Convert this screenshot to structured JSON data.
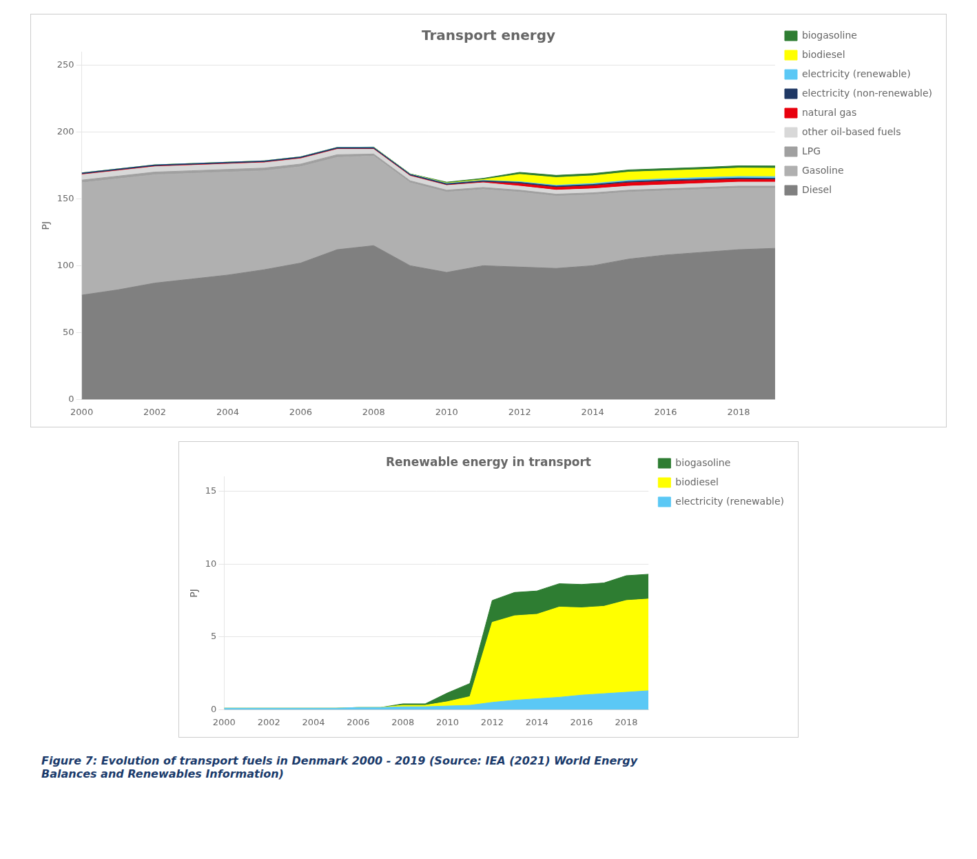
{
  "chart_data": [
    {
      "type": "area",
      "stacked": true,
      "title": "Transport energy",
      "y_label": "PJ",
      "x": [
        2000,
        2001,
        2002,
        2003,
        2004,
        2005,
        2006,
        2007,
        2008,
        2009,
        2010,
        2011,
        2012,
        2013,
        2014,
        2015,
        2016,
        2017,
        2018,
        2019
      ],
      "xlim": [
        2000,
        2019
      ],
      "xticks": [
        2000,
        2002,
        2004,
        2006,
        2008,
        2010,
        2012,
        2014,
        2016,
        2018
      ],
      "ylim": [
        0,
        260
      ],
      "yticks": [
        0,
        50,
        100,
        150,
        200,
        250
      ],
      "grid": "y",
      "legend": "right",
      "series": [
        {
          "name": "Diesel",
          "color": "#808080",
          "values": [
            78,
            82,
            87,
            90,
            93,
            97,
            102,
            112,
            115,
            100,
            95,
            100,
            99,
            98,
            100,
            105,
            108,
            110,
            112,
            113
          ]
        },
        {
          "name": "Gasoline",
          "color": "#b0b0b0",
          "values": [
            84,
            83,
            81,
            79,
            77,
            74,
            72,
            69,
            67,
            62,
            60,
            57,
            56,
            54,
            53,
            50,
            48,
            47,
            46,
            45
          ]
        },
        {
          "name": "LPG",
          "color": "#a0a0a0",
          "values": [
            2.0,
            2.0,
            2.0,
            2.0,
            2.0,
            2.0,
            2.0,
            2.0,
            1.5,
            1.5,
            1.5,
            1.5,
            1.5,
            1.5,
            1.5,
            1.5,
            1.5,
            1.5,
            1.5,
            1.5
          ]
        },
        {
          "name": "other oil-based fuels",
          "color": "#d8d8d8",
          "values": [
            4.0,
            4.0,
            4.0,
            4.0,
            4.0,
            4.0,
            4.0,
            4.0,
            3.5,
            3.5,
            3.5,
            3.5,
            3.0,
            3.0,
            3.0,
            3.0,
            3.0,
            3.0,
            3.0,
            3.0
          ]
        },
        {
          "name": "natural gas",
          "color": "#e8000d",
          "values": [
            0.3,
            0.3,
            0.3,
            0.3,
            0.3,
            0.3,
            0.3,
            0.3,
            0.3,
            0.3,
            0.3,
            0.5,
            1.8,
            2.0,
            2.2,
            2.5,
            2.5,
            2.3,
            2.0,
            1.8
          ]
        },
        {
          "name": "electricity (non-renewable)",
          "color": "#1f3864",
          "values": [
            1.0,
            1.0,
            1.0,
            1.0,
            1.0,
            1.0,
            1.0,
            1.0,
            1.0,
            1.0,
            1.0,
            1.0,
            1.0,
            1.0,
            1.0,
            1.0,
            1.0,
            1.0,
            1.0,
            1.0
          ]
        },
        {
          "name": "electricity (renewable)",
          "color": "#5bc8f5",
          "values": [
            0.1,
            0.1,
            0.1,
            0.1,
            0.1,
            0.1,
            0.15,
            0.15,
            0.2,
            0.2,
            0.25,
            0.3,
            0.5,
            0.65,
            0.75,
            0.85,
            1.0,
            1.1,
            1.2,
            1.3
          ]
        },
        {
          "name": "biodiesel",
          "color": "#ffff00",
          "values": [
            0.0,
            0.0,
            0.0,
            0.0,
            0.0,
            0.0,
            0.0,
            0.0,
            0.1,
            0.1,
            0.3,
            0.6,
            5.5,
            5.8,
            5.8,
            6.2,
            6.0,
            6.0,
            6.3,
            6.3
          ]
        },
        {
          "name": "biogasoline",
          "color": "#2e7d32",
          "values": [
            0.0,
            0.0,
            0.0,
            0.0,
            0.0,
            0.0,
            0.0,
            0.0,
            0.1,
            0.1,
            0.6,
            0.9,
            1.5,
            1.6,
            1.6,
            1.6,
            1.6,
            1.6,
            1.7,
            1.7
          ]
        }
      ]
    },
    {
      "type": "area",
      "stacked": true,
      "title": "Renewable energy in transport",
      "y_label": "PJ",
      "x": [
        2000,
        2001,
        2002,
        2003,
        2004,
        2005,
        2006,
        2007,
        2008,
        2009,
        2010,
        2011,
        2012,
        2013,
        2014,
        2015,
        2016,
        2017,
        2018,
        2019
      ],
      "xlim": [
        2000,
        2019
      ],
      "xticks": [
        2000,
        2002,
        2004,
        2006,
        2008,
        2010,
        2012,
        2014,
        2016,
        2018
      ],
      "ylim": [
        0,
        16
      ],
      "yticks": [
        0,
        5,
        10,
        15
      ],
      "grid": "y",
      "legend": "right",
      "series": [
        {
          "name": "electricity (renewable)",
          "color": "#5bc8f5",
          "values": [
            0.1,
            0.1,
            0.1,
            0.1,
            0.1,
            0.1,
            0.15,
            0.15,
            0.2,
            0.2,
            0.25,
            0.3,
            0.5,
            0.65,
            0.75,
            0.85,
            1.0,
            1.1,
            1.2,
            1.3
          ]
        },
        {
          "name": "biodiesel",
          "color": "#ffff00",
          "values": [
            0.0,
            0.0,
            0.0,
            0.0,
            0.0,
            0.0,
            0.0,
            0.0,
            0.1,
            0.1,
            0.3,
            0.6,
            5.5,
            5.8,
            5.8,
            6.2,
            6.0,
            6.0,
            6.3,
            6.3
          ]
        },
        {
          "name": "biogasoline",
          "color": "#2e7d32",
          "values": [
            0.0,
            0.0,
            0.0,
            0.0,
            0.0,
            0.0,
            0.0,
            0.0,
            0.1,
            0.1,
            0.6,
            0.9,
            1.5,
            1.6,
            1.6,
            1.6,
            1.6,
            1.6,
            1.7,
            1.7
          ]
        }
      ]
    }
  ],
  "caption": "Figure 7: Evolution of transport fuels in Denmark 2000 - 2019 (Source: IEA (2021) World Energy\nBalances and Renewables Information)"
}
